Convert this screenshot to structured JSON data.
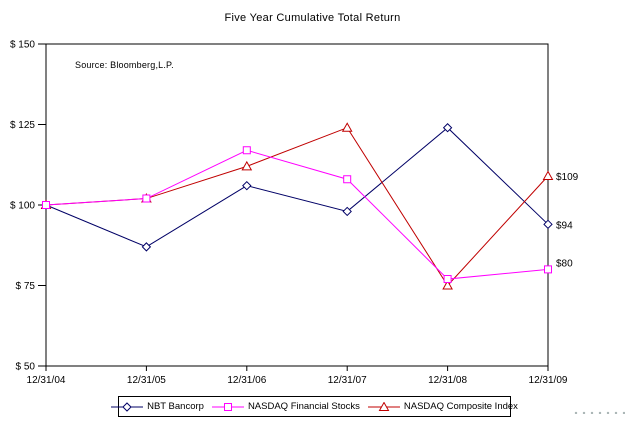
{
  "title": "Five Year Cumulative Total Return",
  "source_note": "Source: Bloomberg,L.P.",
  "chart_data": {
    "type": "line",
    "title": "Five Year Cumulative Total Return",
    "annotation": "Source: Bloomberg,L.P.",
    "x": [
      "12/31/04",
      "12/31/05",
      "12/31/06",
      "12/31/07",
      "12/31/08",
      "12/31/09"
    ],
    "ylim": [
      50,
      150
    ],
    "y_tick_values": [
      150,
      125,
      100,
      75,
      50
    ],
    "y_tick_labels": [
      "$ 150",
      "$ 125",
      "$ 100",
      "$ 75",
      "$ 50"
    ],
    "grid": false,
    "legend_position": "bottom",
    "series": [
      {
        "name": "NBT Bancorp",
        "marker": "diamond",
        "color": "#000066",
        "values": [
          100,
          87,
          106,
          98,
          124,
          94
        ],
        "end_label": "$94"
      },
      {
        "name": "NASDAQ Financial Stocks",
        "marker": "square",
        "color": "#FF00FF",
        "values": [
          100,
          102,
          117,
          108,
          77,
          80
        ],
        "end_label": "$80"
      },
      {
        "name": "NASDAQ Composite Index",
        "marker": "triangle",
        "color": "#C00000",
        "values": [
          100,
          102,
          112,
          124,
          75,
          109
        ],
        "end_label": "$109"
      }
    ]
  }
}
